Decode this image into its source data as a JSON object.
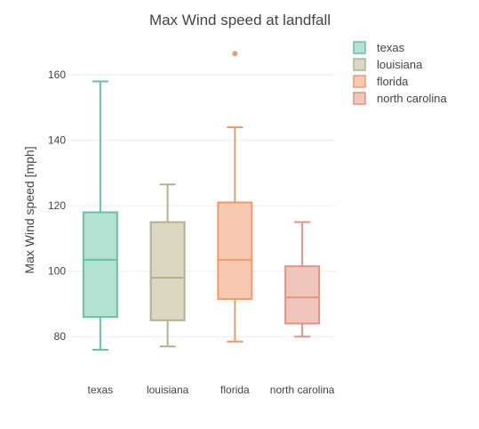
{
  "chart_data": {
    "type": "box",
    "title": "Max Wind speed at landfall",
    "ylabel": "Max Wind speed [mph]",
    "xlabel": "",
    "ylim": [
      70,
      172
    ],
    "yticks": [
      80,
      100,
      120,
      140,
      160
    ],
    "grid": true,
    "legend_position": "top-right",
    "categories": [
      "texas",
      "louisiana",
      "florida",
      "north carolina"
    ],
    "series": [
      {
        "name": "texas",
        "color": "#66c2a5",
        "fill": "#b3e1d2",
        "min": 76,
        "q1": 86,
        "median": 103.5,
        "q3": 118,
        "max": 158,
        "outliers": []
      },
      {
        "name": "louisiana",
        "color": "#b5b08d",
        "fill": "#dcd7c3",
        "min": 77,
        "q1": 85,
        "median": 98,
        "q3": 115,
        "max": 126.5,
        "outliers": []
      },
      {
        "name": "florida",
        "color": "#ee9a6d",
        "fill": "#f6c9b0",
        "min": 78.5,
        "q1": 91.5,
        "median": 103.5,
        "q3": 121,
        "max": 144,
        "outliers": [
          166.5
        ]
      },
      {
        "name": "north carolina",
        "color": "#e19483",
        "fill": "#f0c6bc",
        "min": 80,
        "q1": 84,
        "median": 92,
        "q3": 101.5,
        "max": 115,
        "outliers": []
      }
    ]
  }
}
